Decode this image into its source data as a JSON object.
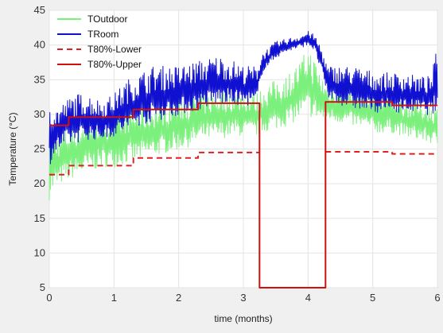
{
  "chart_data": {
    "type": "line",
    "xlabel": "time (months)",
    "ylabel": "Temperature (°C)",
    "xlim": [
      0,
      6
    ],
    "ylim": [
      5,
      45
    ],
    "xticks": [
      0,
      1,
      2,
      3,
      4,
      5,
      6
    ],
    "yticks": [
      5,
      10,
      15,
      20,
      25,
      30,
      35,
      40,
      45
    ],
    "grid": true,
    "legend_position": "top-left",
    "series": [
      {
        "name": "TOutdoor",
        "color": "#7cf07c",
        "style": "solid",
        "x": [
          0,
          0.1,
          0.25,
          0.4,
          0.6,
          0.8,
          1.0,
          1.2,
          1.4,
          1.6,
          1.8,
          2.0,
          2.2,
          2.4,
          2.6,
          2.8,
          3.0,
          3.2,
          3.3,
          3.5,
          3.7,
          3.9,
          4.0,
          4.1,
          4.2,
          4.3,
          4.5,
          4.7,
          4.9,
          5.1,
          5.3,
          5.5,
          5.7,
          5.9,
          6.0
        ],
        "low": [
          17,
          19,
          20,
          20.5,
          21,
          22,
          22,
          22.5,
          23,
          23.5,
          24,
          24.5,
          25,
          26,
          26,
          26.5,
          26.5,
          26.5,
          27,
          27.5,
          28,
          29,
          29,
          29,
          28.5,
          29,
          28.5,
          28,
          27.5,
          27,
          27,
          26.5,
          26,
          25.5,
          25
        ],
        "high": [
          30,
          27,
          28,
          29,
          30,
          30,
          30,
          31,
          31,
          31.5,
          32,
          32.5,
          33,
          33,
          33.5,
          33.5,
          33.5,
          33,
          34,
          35,
          36,
          38,
          40,
          38,
          36,
          34,
          34,
          34,
          33.5,
          33,
          33,
          32,
          32,
          31.5,
          31
        ]
      },
      {
        "name": "TRoom",
        "color": "#1010d0",
        "style": "solid",
        "x": [
          0,
          0.1,
          0.25,
          0.4,
          0.6,
          0.8,
          1.0,
          1.2,
          1.4,
          1.6,
          1.8,
          2.0,
          2.2,
          2.4,
          2.6,
          2.8,
          3.0,
          3.2,
          3.3,
          3.5,
          3.7,
          3.9,
          4.0,
          4.1,
          4.2,
          4.3,
          4.5,
          4.7,
          4.9,
          5.1,
          5.3,
          5.5,
          5.7,
          5.9,
          6.0
        ],
        "low": [
          22,
          24,
          25,
          25.5,
          26,
          26,
          26.5,
          27,
          28,
          28.5,
          29,
          29.5,
          30,
          30.5,
          31,
          31,
          31,
          31,
          36,
          38,
          39,
          39.5,
          40,
          39,
          36,
          32,
          31,
          30.5,
          30,
          30,
          30,
          30,
          30,
          29.5,
          29.5
        ],
        "high": [
          33,
          31,
          32,
          33,
          33,
          32,
          33,
          35,
          36,
          37,
          37,
          37,
          37.5,
          38,
          38.5,
          38,
          37,
          37,
          39,
          40.5,
          41,
          41.5,
          42,
          41.5,
          40,
          37,
          37,
          37,
          36.5,
          36,
          36,
          36,
          35.5,
          35.5,
          40
        ]
      },
      {
        "name": "T80%-Lower",
        "color": "#e02020",
        "style": "dashed",
        "x": [
          0,
          0.3,
          0.3,
          1.3,
          1.3,
          2.3,
          2.3,
          3.25,
          3.25,
          4.27,
          4.27,
          5.3,
          5.3,
          6.0
        ],
        "y": [
          21.3,
          21.3,
          22.6,
          22.6,
          23.7,
          23.7,
          24.5,
          24.5,
          null,
          null,
          24.6,
          24.6,
          24.3,
          24.3
        ]
      },
      {
        "name": "T80%-Upper",
        "color": "#d01010",
        "style": "solid",
        "x": [
          0,
          0.3,
          0.3,
          1.3,
          1.3,
          2.3,
          2.3,
          3.25,
          3.25,
          4.27,
          4.27,
          5.3,
          5.3,
          6.0
        ],
        "y": [
          28.4,
          28.4,
          29.6,
          29.6,
          30.7,
          30.7,
          31.6,
          31.6,
          5,
          5,
          31.8,
          31.8,
          31.3,
          31.3
        ]
      }
    ]
  }
}
